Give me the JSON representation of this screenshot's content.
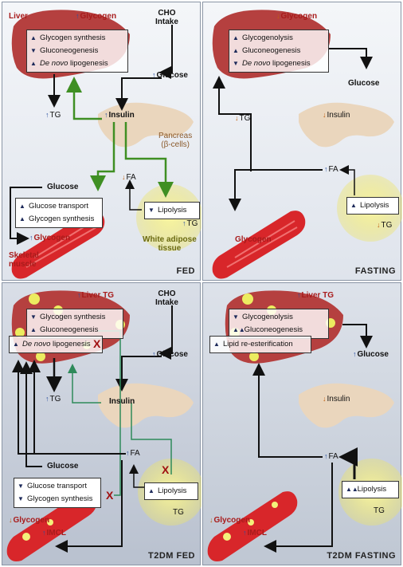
{
  "fed": {
    "title": "FED",
    "liver": "Liver",
    "glycogen": "Glycogen",
    "cho": "CHO",
    "intake": "Intake",
    "box": [
      "Glycogen synthesis",
      "Gluconeogenesis",
      "lipogenesis"
    ],
    "denovo": "De novo",
    "glucose": "Glucose",
    "tg": "TG",
    "insulin": "Insulin",
    "pancreas": "Pancreas",
    "beta": "(β-cells)",
    "glucose2": "Glucose",
    "fa": "FA",
    "muscle_box": [
      "Glucose transport",
      "Glycogen synthesis"
    ],
    "muscle_glycogen": "Glycogen",
    "skeletal": "Skeletal",
    "muscle": "muscle",
    "lipolysis": "Lipolysis",
    "tg2": "TG",
    "white": "White adipose",
    "tissue": "tissue"
  },
  "fasting": {
    "title": "FASTING",
    "glycogen": "Glycogen",
    "box": [
      "Glycogenolysis",
      "Gluconeogenesis",
      "lipogenesis"
    ],
    "denovo": "De novo",
    "glucose": "Glucose",
    "tg": "TG",
    "insulin": "Insulin",
    "fa": "FA",
    "lipolysis": "Lipolysis",
    "tg2": "TG",
    "muscle_glycogen": "Glycogen"
  },
  "t2dm_fed": {
    "title": "T2DM FED",
    "liver_tg": "Liver TG",
    "cho": "CHO",
    "intake": "Intake",
    "box": [
      "Glycogen synthesis",
      "Gluconeogenesis"
    ],
    "denovo": "De novo",
    "lipo": "lipogenesis",
    "glucose": "Glucose",
    "tg": "TG",
    "insulin": "Insulin",
    "fa": "FA",
    "glucose2": "Glucose",
    "muscle_box": [
      "Glucose transport",
      "Glycogen synthesis"
    ],
    "lipolysis": "Lipolysis",
    "tg2": "TG",
    "muscle_glycogen": "Glycogen",
    "imcl": "IMCL",
    "x": "X"
  },
  "t2dm_fasting": {
    "title": "T2DM FASTING",
    "liver_tg": "Liver TG",
    "box": [
      "Glycogenolysis",
      "Gluconeogenesis"
    ],
    "reester": "Lipid re-esterification",
    "glucose": "Glucose",
    "insulin": "Insulin",
    "fa": "FA",
    "lipolysis": "Lipolysis",
    "tg2": "TG",
    "muscle_glycogen": "Glycogen",
    "imcl": "IMCL"
  },
  "colors": {
    "liver": "#b5403f",
    "muscle": "#d8262a",
    "pancreas": "#ead6bd",
    "adipose": "#f3ee7a",
    "green": "#3f8f23",
    "teal": "#2e8a5a"
  }
}
